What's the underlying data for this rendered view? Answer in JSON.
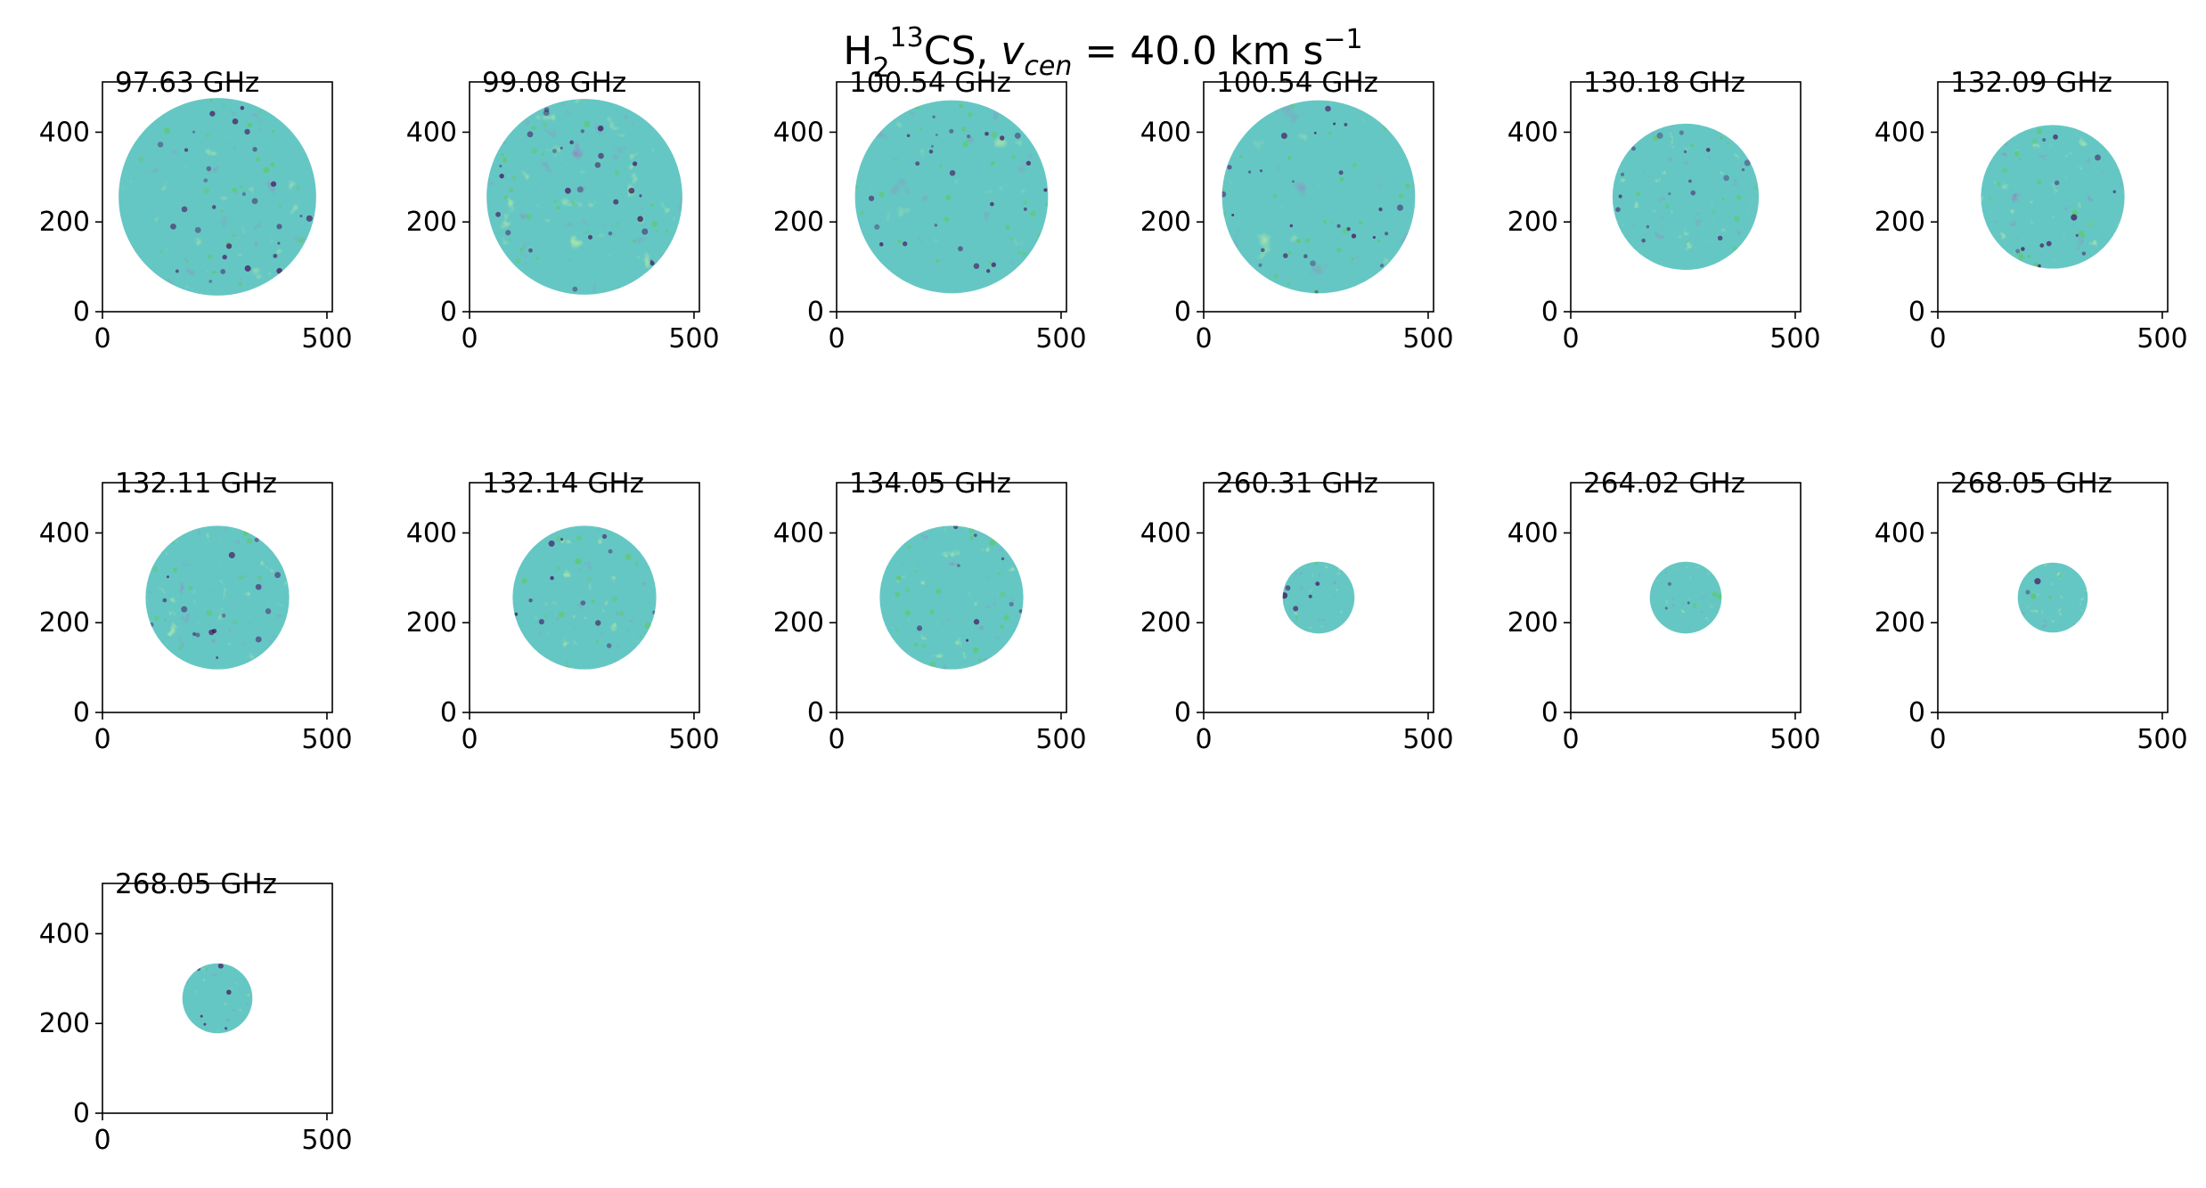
{
  "figure": {
    "title": {
      "pre": "H",
      "sub1": "2",
      "sup1": "13",
      "mid": "CS, ",
      "var": "v",
      "sub2": "cen",
      "post": " =  40.0 km s",
      "sup2": "−1"
    },
    "colormap": [
      "#440154",
      "#3b528b",
      "#21918c",
      "#5ec962",
      "#fde725"
    ],
    "background": "#ffffff",
    "axis_color": "#000000"
  },
  "chart_data": [
    {
      "type": "heatmap",
      "title": "97.63 GHz",
      "xlim": [
        0,
        512
      ],
      "ylim": [
        0,
        512
      ],
      "xticks": [
        0,
        500
      ],
      "yticks": [
        0,
        200,
        400
      ],
      "disk": {
        "center": [
          256,
          256
        ],
        "radius": 220
      },
      "texture": {
        "seed": 11,
        "scale": 0.05
      }
    },
    {
      "type": "heatmap",
      "title": "99.08 GHz",
      "xlim": [
        0,
        512
      ],
      "ylim": [
        0,
        512
      ],
      "xticks": [
        0,
        500
      ],
      "yticks": [
        0,
        200,
        400
      ],
      "disk": {
        "center": [
          256,
          256
        ],
        "radius": 218
      },
      "texture": {
        "seed": 23,
        "scale": 0.05
      }
    },
    {
      "type": "heatmap",
      "title": "100.54 GHz",
      "xlim": [
        0,
        512
      ],
      "ylim": [
        0,
        512
      ],
      "xticks": [
        0,
        500
      ],
      "yticks": [
        0,
        200,
        400
      ],
      "disk": {
        "center": [
          256,
          256
        ],
        "radius": 215
      },
      "texture": {
        "seed": 37,
        "scale": 0.035
      }
    },
    {
      "type": "heatmap",
      "title": "100.54 GHz",
      "xlim": [
        0,
        512
      ],
      "ylim": [
        0,
        512
      ],
      "xticks": [
        0,
        500
      ],
      "yticks": [
        0,
        200,
        400
      ],
      "disk": {
        "center": [
          256,
          256
        ],
        "radius": 215
      },
      "texture": {
        "seed": 41,
        "scale": 0.035
      }
    },
    {
      "type": "heatmap",
      "title": "130.18 GHz",
      "xlim": [
        0,
        512
      ],
      "ylim": [
        0,
        512
      ],
      "xticks": [
        0,
        500
      ],
      "yticks": [
        0,
        200,
        400
      ],
      "disk": {
        "center": [
          256,
          256
        ],
        "radius": 163
      },
      "texture": {
        "seed": 53,
        "scale": 0.07
      }
    },
    {
      "type": "heatmap",
      "title": "132.09 GHz",
      "xlim": [
        0,
        512
      ],
      "ylim": [
        0,
        512
      ],
      "xticks": [
        0,
        500
      ],
      "yticks": [
        0,
        200,
        400
      ],
      "disk": {
        "center": [
          256,
          256
        ],
        "radius": 160
      },
      "texture": {
        "seed": 67,
        "scale": 0.07
      }
    },
    {
      "type": "heatmap",
      "title": "132.11 GHz",
      "xlim": [
        0,
        512
      ],
      "ylim": [
        0,
        512
      ],
      "xticks": [
        0,
        500
      ],
      "yticks": [
        0,
        200,
        400
      ],
      "disk": {
        "center": [
          256,
          256
        ],
        "radius": 160
      },
      "texture": {
        "seed": 71,
        "scale": 0.07
      }
    },
    {
      "type": "heatmap",
      "title": "132.14 GHz",
      "xlim": [
        0,
        512
      ],
      "ylim": [
        0,
        512
      ],
      "xticks": [
        0,
        500
      ],
      "yticks": [
        0,
        200,
        400
      ],
      "disk": {
        "center": [
          256,
          256
        ],
        "radius": 160
      },
      "texture": {
        "seed": 83,
        "scale": 0.07
      }
    },
    {
      "type": "heatmap",
      "title": "134.05 GHz",
      "xlim": [
        0,
        512
      ],
      "ylim": [
        0,
        512
      ],
      "xticks": [
        0,
        500
      ],
      "yticks": [
        0,
        200,
        400
      ],
      "disk": {
        "center": [
          256,
          256
        ],
        "radius": 160
      },
      "texture": {
        "seed": 97,
        "scale": 0.07
      }
    },
    {
      "type": "heatmap",
      "title": "260.31 GHz",
      "xlim": [
        0,
        512
      ],
      "ylim": [
        0,
        512
      ],
      "xticks": [
        0,
        500
      ],
      "yticks": [
        0,
        200,
        400
      ],
      "disk": {
        "center": [
          256,
          256
        ],
        "radius": 80
      },
      "texture": {
        "seed": 101,
        "scale": 0.12
      }
    },
    {
      "type": "heatmap",
      "title": "264.02 GHz",
      "xlim": [
        0,
        512
      ],
      "ylim": [
        0,
        512
      ],
      "xticks": [
        0,
        500
      ],
      "yticks": [
        0,
        200,
        400
      ],
      "disk": {
        "center": [
          256,
          256
        ],
        "radius": 80
      },
      "texture": {
        "seed": 113,
        "scale": 0.12
      }
    },
    {
      "type": "heatmap",
      "title": "268.05 GHz",
      "xlim": [
        0,
        512
      ],
      "ylim": [
        0,
        512
      ],
      "xticks": [
        0,
        500
      ],
      "yticks": [
        0,
        200,
        400
      ],
      "disk": {
        "center": [
          256,
          256
        ],
        "radius": 78
      },
      "texture": {
        "seed": 127,
        "scale": 0.12
      }
    },
    {
      "type": "heatmap",
      "title": "268.05 GHz",
      "xlim": [
        0,
        512
      ],
      "ylim": [
        0,
        512
      ],
      "xticks": [
        0,
        500
      ],
      "yticks": [
        0,
        200,
        400
      ],
      "disk": {
        "center": [
          256,
          256
        ],
        "radius": 78
      },
      "texture": {
        "seed": 131,
        "scale": 0.12
      }
    }
  ]
}
